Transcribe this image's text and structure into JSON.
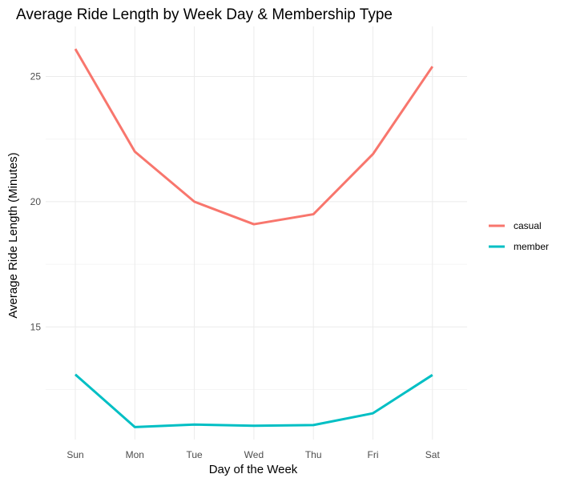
{
  "chart_data": {
    "type": "line",
    "title": "Average Ride Length by Week Day & Membership Type",
    "xlabel": "Day of the Week",
    "ylabel": "Average Ride Length (Minutes)",
    "categories": [
      "Sun",
      "Mon",
      "Tue",
      "Wed",
      "Thu",
      "Fri",
      "Sat"
    ],
    "ylim": [
      10.5,
      27
    ],
    "yticks": [
      15,
      20,
      25
    ],
    "grid": true,
    "legend_position": "right",
    "series": [
      {
        "name": "casual",
        "color": "#F8766D",
        "values": [
          26.1,
          22.0,
          20.0,
          19.1,
          19.5,
          21.9,
          25.4
        ]
      },
      {
        "name": "member",
        "color": "#00BFC4",
        "values": [
          13.1,
          11.0,
          11.1,
          11.05,
          11.08,
          11.55,
          13.08
        ]
      }
    ]
  }
}
